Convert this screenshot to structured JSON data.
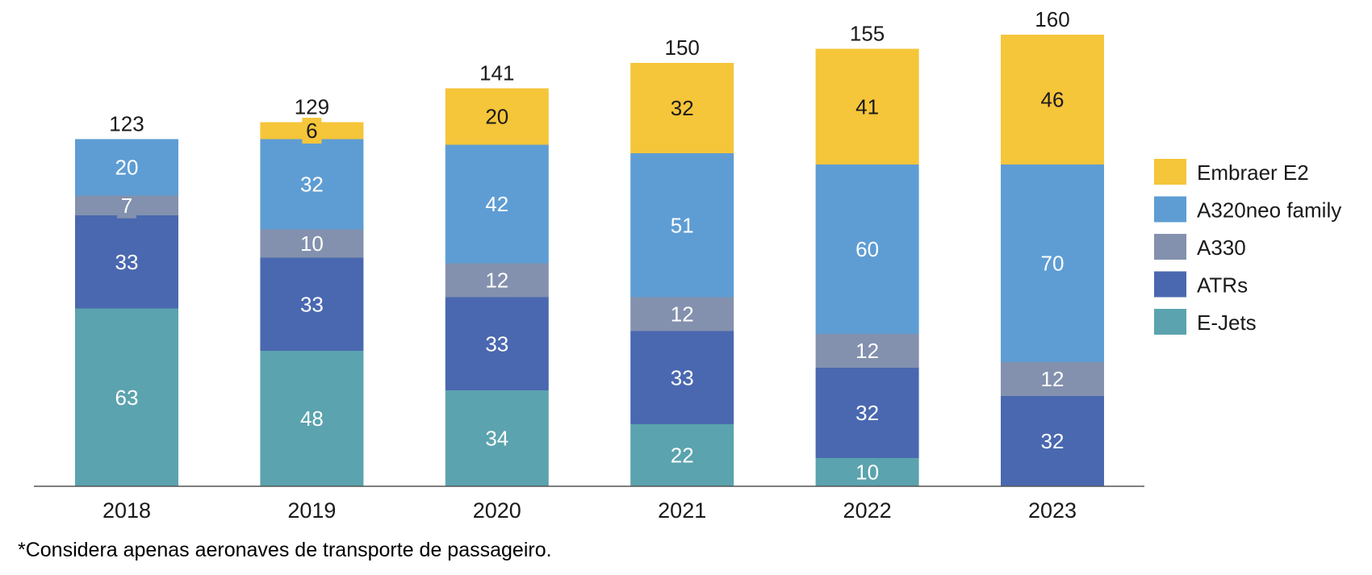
{
  "chart_data": {
    "type": "bar",
    "stacked": true,
    "categories": [
      "2018",
      "2019",
      "2020",
      "2021",
      "2022",
      "2023"
    ],
    "totals": [
      123,
      129,
      141,
      150,
      155,
      160
    ],
    "series": [
      {
        "name": "E-Jets",
        "color": "#5BA3AE",
        "values": [
          63,
          48,
          34,
          22,
          10,
          0
        ]
      },
      {
        "name": "ATRs",
        "color": "#4A68B0",
        "values": [
          33,
          33,
          33,
          33,
          32,
          32
        ]
      },
      {
        "name": "A330",
        "color": "#8391AE",
        "values": [
          7,
          10,
          12,
          12,
          12,
          12
        ]
      },
      {
        "name": "A320neo family",
        "color": "#5E9DD3",
        "values": [
          20,
          32,
          42,
          51,
          60,
          70
        ]
      },
      {
        "name": "Embraer E2",
        "color": "#F5C53A",
        "values": [
          0,
          6,
          20,
          32,
          41,
          46
        ]
      }
    ],
    "legend_order": [
      "Embraer E2",
      "A320neo family",
      "A330",
      "ATRs",
      "E-Jets"
    ],
    "legend_position": "right",
    "grid": false,
    "ylim": [
      0,
      160
    ]
  },
  "footnote": "*Considera apenas aeronaves de transporte de passageiro."
}
